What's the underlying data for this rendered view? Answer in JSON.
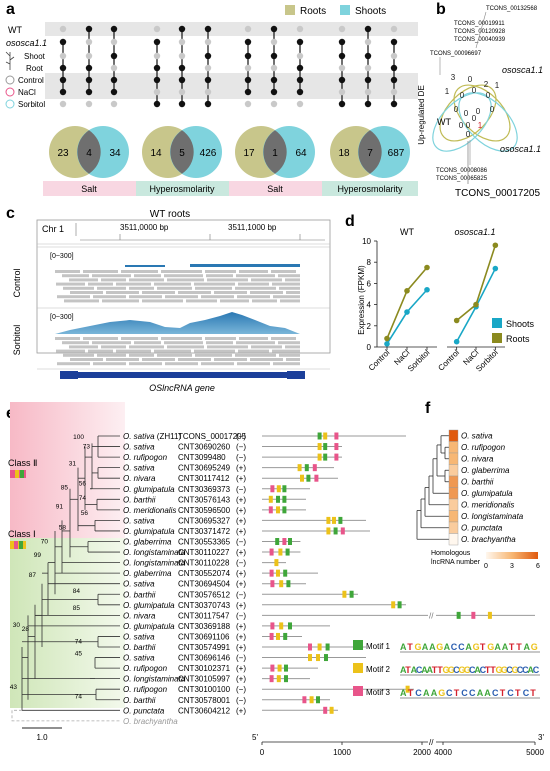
{
  "panel_labels": {
    "a": "a",
    "b": "b",
    "c": "c",
    "d": "d",
    "e": "e",
    "f": "f"
  },
  "panel_a": {
    "legend": {
      "roots": "Roots",
      "shoots": "Shoots",
      "colors": {
        "roots": "#c8c68b",
        "shoots": "#7fd3dd"
      }
    },
    "row_labels": {
      "wt": "WT",
      "mutant": "ososca1.1",
      "shoot": "Shoot",
      "root": "Root",
      "control": "Control",
      "nacl": "NaCl",
      "sorbitol": "Sorbitol"
    },
    "venn": [
      {
        "left": "23",
        "mid": "4",
        "right": "34"
      },
      {
        "left": "14",
        "mid": "5",
        "right": "426"
      },
      {
        "left": "17",
        "mid": "1",
        "right": "64"
      },
      {
        "left": "18",
        "mid": "7",
        "right": "687"
      }
    ],
    "treatments": [
      "Salt",
      "Hyperosmolarity",
      "Salt",
      "Hyperosmolarity"
    ]
  },
  "panel_b": {
    "side_label": "Up-regulated DE",
    "wt": "WT",
    "mutant": "ososca1.1",
    "top_ids": [
      "TCONS_00132568",
      "TCONS_00019911",
      "TCONS_00120928",
      "TCONS_00040939"
    ],
    "left_id": "TCONS_00096697",
    "bottom_ids": [
      "TCONS_00008086",
      "TCONS_00065825"
    ],
    "result_id": "TCONS_00017205",
    "numbers": [
      "3",
      "1",
      "0",
      "1",
      "0",
      "2",
      "0",
      "0",
      "0",
      "0",
      "0",
      "0",
      "0",
      "0",
      "1",
      "0",
      "0"
    ]
  },
  "panel_c": {
    "title": "WT roots",
    "chr": "Chr 1",
    "pos1": "3511,0000 bp",
    "pos2": "3511,1000 bp",
    "range": "[0~300]",
    "tracks": [
      "Control",
      "Sorbitol"
    ],
    "gene": "OSlncRNA gene"
  },
  "panel_d": {
    "chart_data": {
      "type": "line",
      "panels": [
        "WT",
        "ososca1.1"
      ],
      "categories": [
        "Control",
        "NaCl",
        "Sorbitol"
      ],
      "ylabel": "Expression (FPKM)",
      "ylim": [
        0,
        10
      ],
      "yticks": [
        "0",
        "2",
        "4",
        "6",
        "8",
        "10"
      ],
      "series": [
        {
          "name": "Shoots",
          "color": "#19a7c6",
          "WT": [
            0.3,
            3.3,
            5.4
          ],
          "ososca1.1": [
            0.5,
            3.8,
            7.4
          ]
        },
        {
          "name": "Roots",
          "color": "#8b8a1f",
          "WT": [
            0.8,
            5.3,
            7.5
          ],
          "ososca1.1": [
            2.5,
            4.0,
            9.6
          ]
        }
      ]
    }
  },
  "panel_e": {
    "class2": "Class Ⅱ",
    "class1": "Class Ⅰ",
    "scale": "1.0",
    "xticks_left": [
      "5'",
      "0",
      "1000",
      "2000"
    ],
    "xticks_right": [
      "4000",
      "5000"
    ],
    "end": "3'",
    "bootstrap": [
      "100",
      "73",
      "31",
      "56",
      "85",
      "74",
      "56",
      "91",
      "58",
      "70",
      "99",
      "87",
      "28",
      "84",
      "85",
      "74",
      "30",
      "45",
      "43",
      "74"
    ],
    "rows": [
      {
        "sp": "O. sativa",
        "extra": " (ZH11)",
        "id": "TCONS_00017205",
        "str": "(−)",
        "len": 1800,
        "m": [
          {
            "t": 1,
            "p": 720
          },
          {
            "t": 2,
            "p": 790
          },
          {
            "t": 3,
            "p": 930
          }
        ]
      },
      {
        "sp": "O. sativa",
        "extra": "",
        "id": "CNT30690260",
        "str": "(−)",
        "len": 1000,
        "m": [
          {
            "t": 2,
            "p": 720
          },
          {
            "t": 1,
            "p": 790
          },
          {
            "t": 3,
            "p": 930
          }
        ]
      },
      {
        "sp": "O. rufipogon",
        "extra": "",
        "id": "CNT3099480",
        "str": "(−)",
        "len": 1000,
        "m": [
          {
            "t": 2,
            "p": 720
          },
          {
            "t": 1,
            "p": 790
          },
          {
            "t": 3,
            "p": 930
          }
        ]
      },
      {
        "sp": "O. sativa",
        "extra": "",
        "id": "CNT30695249",
        "str": "(+)",
        "len": 900,
        "m": [
          {
            "t": 2,
            "p": 470
          },
          {
            "t": 1,
            "p": 560
          },
          {
            "t": 3,
            "p": 660
          }
        ]
      },
      {
        "sp": "O. nivara",
        "extra": "",
        "id": "CNT30117412",
        "str": "(+)",
        "len": 950,
        "m": [
          {
            "t": 2,
            "p": 500
          },
          {
            "t": 1,
            "p": 580
          },
          {
            "t": 3,
            "p": 680
          }
        ]
      },
      {
        "sp": "O. glumipatula",
        "extra": "",
        "id": "CNT30369373",
        "str": "(−)",
        "len": 600,
        "m": [
          {
            "t": 3,
            "p": 130
          },
          {
            "t": 2,
            "p": 210
          },
          {
            "t": 1,
            "p": 280
          }
        ]
      },
      {
        "sp": "O. barthii",
        "extra": "",
        "id": "CNT30576143",
        "str": "(+)",
        "len": 550,
        "m": [
          {
            "t": 2,
            "p": 110
          },
          {
            "t": 1,
            "p": 200
          },
          {
            "t": 1,
            "p": 280
          }
        ]
      },
      {
        "sp": "O. meridionalis",
        "extra": "",
        "id": "CNT30596500",
        "str": "(+)",
        "len": 550,
        "m": [
          {
            "t": 3,
            "p": 110
          },
          {
            "t": 2,
            "p": 200
          },
          {
            "t": 1,
            "p": 280
          }
        ]
      },
      {
        "sp": "O. sativa",
        "extra": "",
        "id": "CNT30695327",
        "str": "(+)",
        "len": 1300,
        "m": [
          {
            "t": 2,
            "p": 830
          },
          {
            "t": 2,
            "p": 900
          },
          {
            "t": 1,
            "p": 980
          }
        ]
      },
      {
        "sp": "O. glumipatula",
        "extra": "",
        "id": "CNT30371472",
        "str": "(+)",
        "len": 1350,
        "m": [
          {
            "t": 2,
            "p": 830
          },
          {
            "t": 1,
            "p": 920
          },
          {
            "t": 3,
            "p": 1010
          }
        ]
      },
      {
        "sp": "O. glaberrima",
        "extra": "",
        "id": "CNT30553365",
        "str": "(−)",
        "len": 480,
        "m": [
          {
            "t": 1,
            "p": 190
          },
          {
            "t": 3,
            "p": 280
          },
          {
            "t": 1,
            "p": 350
          }
        ]
      },
      {
        "sp": "O. longistaminata",
        "extra": "",
        "id": "CNT30110227",
        "str": "(+)",
        "len": 480,
        "m": [
          {
            "t": 3,
            "p": 120
          },
          {
            "t": 2,
            "p": 230
          },
          {
            "t": 1,
            "p": 320
          }
        ]
      },
      {
        "sp": "O. longistaminata",
        "extra": "",
        "id": "CNT30110228",
        "str": "(−)",
        "len": 300,
        "m": [
          {
            "t": 2,
            "p": 180
          }
        ]
      },
      {
        "sp": "O. glaberrima",
        "extra": "",
        "id": "CNT30552074",
        "str": "(+)",
        "len": 700,
        "m": [
          {
            "t": 3,
            "p": 120
          },
          {
            "t": 2,
            "p": 200
          },
          {
            "t": 1,
            "p": 290
          }
        ]
      },
      {
        "sp": "O. sativa",
        "extra": "",
        "id": "CNT30694504",
        "str": "(+)",
        "len": 550,
        "m": [
          {
            "t": 3,
            "p": 130
          },
          {
            "t": 2,
            "p": 240
          },
          {
            "t": 1,
            "p": 330
          }
        ]
      },
      {
        "sp": "O. barthii",
        "extra": "",
        "id": "CNT30576512",
        "str": "(−)",
        "len": 1200,
        "m": [
          {
            "t": 2,
            "p": 1030
          },
          {
            "t": 1,
            "p": 1120
          }
        ]
      },
      {
        "sp": "O. glumipatula",
        "extra": "",
        "id": "CNT30370743",
        "str": "(+)",
        "len": 1800,
        "m": [
          {
            "t": 2,
            "p": 1640
          },
          {
            "t": 1,
            "p": 1720
          }
        ]
      },
      {
        "sp": "O. nivara",
        "extra": "",
        "id": "CNT30117547",
        "str": "(−)",
        "len": 5000,
        "m": [
          {
            "t": 1,
            "p": 4170
          },
          {
            "t": 3,
            "p": 4330
          },
          {
            "t": 2,
            "p": 4510
          }
        ]
      },
      {
        "sp": "O. glumipatula",
        "extra": "",
        "id": "CNT30369188",
        "str": "(+)",
        "len": 850,
        "m": [
          {
            "t": 3,
            "p": 130
          },
          {
            "t": 2,
            "p": 240
          },
          {
            "t": 1,
            "p": 350
          }
        ]
      },
      {
        "sp": "O. sativa",
        "extra": "",
        "id": "CNT30691106",
        "str": "(+)",
        "len": 500,
        "m": [
          {
            "t": 3,
            "p": 120
          },
          {
            "t": 2,
            "p": 200
          },
          {
            "t": 1,
            "p": 290
          }
        ]
      },
      {
        "sp": "O. barthii",
        "extra": "",
        "id": "CNT30574991",
        "str": "(+)",
        "len": 1300,
        "m": [
          {
            "t": 3,
            "p": 600
          },
          {
            "t": 2,
            "p": 720
          },
          {
            "t": 1,
            "p": 820
          }
        ]
      },
      {
        "sp": "O. sativa",
        "extra": "",
        "id": "CNT30696146",
        "str": "(−)",
        "len": 1300,
        "m": [
          {
            "t": 2,
            "p": 600
          },
          {
            "t": 2,
            "p": 700
          },
          {
            "t": 1,
            "p": 800
          }
        ]
      },
      {
        "sp": "O. rufipogon",
        "extra": "",
        "id": "CNT30102371",
        "str": "(+)",
        "len": 700,
        "m": [
          {
            "t": 3,
            "p": 130
          },
          {
            "t": 2,
            "p": 220
          },
          {
            "t": 1,
            "p": 300
          }
        ]
      },
      {
        "sp": "O. longistaminata",
        "extra": "",
        "id": "CNT30105997",
        "str": "(+)",
        "len": 600,
        "m": [
          {
            "t": 3,
            "p": 120
          },
          {
            "t": 2,
            "p": 210
          },
          {
            "t": 1,
            "p": 300
          }
        ]
      },
      {
        "sp": "O. rufipogon",
        "extra": "",
        "id": "CNT30100100",
        "str": "(−)",
        "len": 1900,
        "m": [
          {
            "t": 2,
            "p": 1820
          }
        ]
      },
      {
        "sp": "O. barthii",
        "extra": "",
        "id": "CNT30578001",
        "str": "(−)",
        "len": 850,
        "m": [
          {
            "t": 3,
            "p": 530
          },
          {
            "t": 2,
            "p": 620
          },
          {
            "t": 1,
            "p": 700
          }
        ]
      },
      {
        "sp": "O. punctata",
        "extra": "",
        "id": "CNT30604212",
        "str": "(+)",
        "len": 950,
        "m": [
          {
            "t": 3,
            "p": 790
          },
          {
            "t": 2,
            "p": 870
          }
        ]
      }
    ],
    "outgroup": "O. brachyantha",
    "motifs": [
      {
        "label": "Motif 1",
        "color": "#3fa63a",
        "seq": "ATGAAGACCAGTGAATTAG"
      },
      {
        "label": "Motif 2",
        "color": "#ecc21a",
        "seq": "ATACAATTGGCGGCACTTGGCGCCAC"
      },
      {
        "label": "Motif 3",
        "color": "#e8558a",
        "seq": "ATCAAGCTCCAACTCTCT"
      }
    ]
  },
  "panel_f": {
    "species": [
      "O. sativa",
      "O. rufipogon",
      "O. nivara",
      "O. glaberrima",
      "O. barthii",
      "O. glumipatula",
      "O. meridionalis",
      "O. longistaminata",
      "O. punctata",
      "O. brachyantha"
    ],
    "values": [
      6,
      3,
      3,
      2,
      4,
      4,
      2,
      3,
      2,
      0
    ],
    "legend_title": "Homologous lncRNA number",
    "legend_ticks": [
      "0",
      "3",
      "6"
    ]
  }
}
